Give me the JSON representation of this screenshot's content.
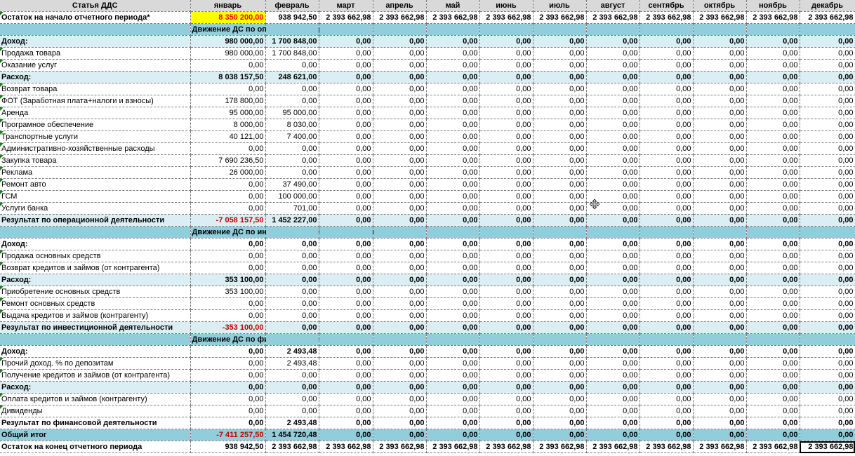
{
  "columns": [
    "Статья ДДС",
    "январь",
    "февраль",
    "март",
    "апрель",
    "май",
    "июнь",
    "июль",
    "август",
    "сентябрь",
    "октябрь",
    "ноябрь",
    "декабрь"
  ],
  "rows": [
    {
      "type": "start",
      "label": "Остаток на начало отчетного периода*",
      "values": [
        "8 350 200,00",
        "938 942,50",
        "2 393 662,98",
        "2 393 662,98",
        "2 393 662,98",
        "2 393 662,98",
        "2 393 662,98",
        "2 393 662,98",
        "2 393 662,98",
        "2 393 662,98",
        "2 393 662,98",
        "2 393 662,98"
      ]
    },
    {
      "type": "section",
      "label": "Движение ДС по операционной деятельности"
    },
    {
      "type": "total",
      "label": "Доход:",
      "values": [
        "980 000,00",
        "1 700 848,00",
        "0,00",
        "0,00",
        "0,00",
        "0,00",
        "0,00",
        "0,00",
        "0,00",
        "0,00",
        "0,00",
        "0,00"
      ]
    },
    {
      "type": "item",
      "label": "Продажа товара",
      "values": [
        "980 000,00",
        "1 700 848,00",
        "0,00",
        "0,00",
        "0,00",
        "0,00",
        "0,00",
        "0,00",
        "0,00",
        "0,00",
        "0,00",
        "0,00"
      ]
    },
    {
      "type": "item",
      "label": "Оказание услуг",
      "values": [
        "0,00",
        "0,00",
        "0,00",
        "0,00",
        "0,00",
        "0,00",
        "0,00",
        "0,00",
        "0,00",
        "0,00",
        "0,00",
        "0,00"
      ]
    },
    {
      "type": "total",
      "label": "Расход:",
      "values": [
        "8 038 157,50",
        "248 621,00",
        "0,00",
        "0,00",
        "0,00",
        "0,00",
        "0,00",
        "0,00",
        "0,00",
        "0,00",
        "0,00",
        "0,00"
      ]
    },
    {
      "type": "item",
      "label": "Возврат товара",
      "values": [
        "0,00",
        "0,00",
        "0,00",
        "0,00",
        "0,00",
        "0,00",
        "0,00",
        "0,00",
        "0,00",
        "0,00",
        "0,00",
        "0,00"
      ]
    },
    {
      "type": "item",
      "label": "ФОТ (Заработная плата+налоги и взносы)",
      "values": [
        "178 800,00",
        "0,00",
        "0,00",
        "0,00",
        "0,00",
        "0,00",
        "0,00",
        "0,00",
        "0,00",
        "0,00",
        "0,00",
        "0,00"
      ]
    },
    {
      "type": "item",
      "label": "Аренда",
      "values": [
        "95 000,00",
        "95 000,00",
        "0,00",
        "0,00",
        "0,00",
        "0,00",
        "0,00",
        "0,00",
        "0,00",
        "0,00",
        "0,00",
        "0,00"
      ]
    },
    {
      "type": "item",
      "label": "Програмное обеспечение",
      "values": [
        "8 000,00",
        "8 030,00",
        "0,00",
        "0,00",
        "0,00",
        "0,00",
        "0,00",
        "0,00",
        "0,00",
        "0,00",
        "0,00",
        "0,00"
      ]
    },
    {
      "type": "item",
      "label": "Транспортные услуги",
      "values": [
        "40 121,00",
        "7 400,00",
        "0,00",
        "0,00",
        "0,00",
        "0,00",
        "0,00",
        "0,00",
        "0,00",
        "0,00",
        "0,00",
        "0,00"
      ]
    },
    {
      "type": "item",
      "label": "Административно-хозяйственные расходы",
      "values": [
        "0,00",
        "0,00",
        "0,00",
        "0,00",
        "0,00",
        "0,00",
        "0,00",
        "0,00",
        "0,00",
        "0,00",
        "0,00",
        "0,00"
      ]
    },
    {
      "type": "item",
      "label": "Закупка товара",
      "values": [
        "7 690 236,50",
        "0,00",
        "0,00",
        "0,00",
        "0,00",
        "0,00",
        "0,00",
        "0,00",
        "0,00",
        "0,00",
        "0,00",
        "0,00"
      ]
    },
    {
      "type": "item",
      "label": "Реклама",
      "values": [
        "26 000,00",
        "0,00",
        "0,00",
        "0,00",
        "0,00",
        "0,00",
        "0,00",
        "0,00",
        "0,00",
        "0,00",
        "0,00",
        "0,00"
      ]
    },
    {
      "type": "item",
      "label": "Ремонт авто",
      "values": [
        "0,00",
        "37 490,00",
        "0,00",
        "0,00",
        "0,00",
        "0,00",
        "0,00",
        "0,00",
        "0,00",
        "0,00",
        "0,00",
        "0,00"
      ]
    },
    {
      "type": "item",
      "label": "ГСМ",
      "values": [
        "0,00",
        "100 000,00",
        "0,00",
        "0,00",
        "0,00",
        "0,00",
        "0,00",
        "0,00",
        "0,00",
        "0,00",
        "0,00",
        "0,00"
      ]
    },
    {
      "type": "item",
      "label": "Услуги банка",
      "values": [
        "0,00",
        "701,00",
        "0,00",
        "0,00",
        "0,00",
        "0,00",
        "0,00",
        "0,00",
        "0,00",
        "0,00",
        "0,00",
        "0,00"
      ]
    },
    {
      "type": "total",
      "label": "Результат по операционной деятельности",
      "neg": [
        0
      ],
      "values": [
        "-7 058 157,50",
        "1 452 227,00",
        "0,00",
        "0,00",
        "0,00",
        "0,00",
        "0,00",
        "0,00",
        "0,00",
        "0,00",
        "0,00",
        "0,00"
      ]
    },
    {
      "type": "section",
      "label": "Движение ДС по инвестиционной деятельности"
    },
    {
      "type": "subtotal",
      "label": "Доход:",
      "values": [
        "0,00",
        "0,00",
        "0,00",
        "0,00",
        "0,00",
        "0,00",
        "0,00",
        "0,00",
        "0,00",
        "0,00",
        "0,00",
        "0,00"
      ]
    },
    {
      "type": "item",
      "label": "Продажа основных средств",
      "values": [
        "0,00",
        "0,00",
        "0,00",
        "0,00",
        "0,00",
        "0,00",
        "0,00",
        "0,00",
        "0,00",
        "0,00",
        "0,00",
        "0,00"
      ]
    },
    {
      "type": "item",
      "label": "Возврат кредитов и займов (от контрагента)",
      "values": [
        "0,00",
        "0,00",
        "0,00",
        "0,00",
        "0,00",
        "0,00",
        "0,00",
        "0,00",
        "0,00",
        "0,00",
        "0,00",
        "0,00"
      ]
    },
    {
      "type": "total",
      "label": "Расход:",
      "values": [
        "353 100,00",
        "0,00",
        "0,00",
        "0,00",
        "0,00",
        "0,00",
        "0,00",
        "0,00",
        "0,00",
        "0,00",
        "0,00",
        "0,00"
      ]
    },
    {
      "type": "item",
      "label": "Приобретение основных средств",
      "values": [
        "353 100,00",
        "0,00",
        "0,00",
        "0,00",
        "0,00",
        "0,00",
        "0,00",
        "0,00",
        "0,00",
        "0,00",
        "0,00",
        "0,00"
      ]
    },
    {
      "type": "item",
      "label": "Ремонт основных средств",
      "values": [
        "0,00",
        "0,00",
        "0,00",
        "0,00",
        "0,00",
        "0,00",
        "0,00",
        "0,00",
        "0,00",
        "0,00",
        "0,00",
        "0,00"
      ]
    },
    {
      "type": "item",
      "label": "Выдача кредитов и займов (контрагенту)",
      "values": [
        "0,00",
        "0,00",
        "0,00",
        "0,00",
        "0,00",
        "0,00",
        "0,00",
        "0,00",
        "0,00",
        "0,00",
        "0,00",
        "0,00"
      ]
    },
    {
      "type": "total",
      "label": "Результат по инвестиционной деятельности",
      "neg": [
        0
      ],
      "values": [
        "-353 100,00",
        "0,00",
        "0,00",
        "0,00",
        "0,00",
        "0,00",
        "0,00",
        "0,00",
        "0,00",
        "0,00",
        "0,00",
        "0,00"
      ]
    },
    {
      "type": "section",
      "label": "Движение ДС по финансовой деятельности"
    },
    {
      "type": "subtotal",
      "label": "Доход:",
      "values": [
        "0,00",
        "2 493,48",
        "0,00",
        "0,00",
        "0,00",
        "0,00",
        "0,00",
        "0,00",
        "0,00",
        "0,00",
        "0,00",
        "0,00"
      ]
    },
    {
      "type": "item",
      "label": "Прочий доход. % по депозитам",
      "values": [
        "0,00",
        "2 493,48",
        "0,00",
        "0,00",
        "0,00",
        "0,00",
        "0,00",
        "0,00",
        "0,00",
        "0,00",
        "0,00",
        "0,00"
      ]
    },
    {
      "type": "item",
      "label": "Получение кредитов и займов (от контрагента)",
      "values": [
        "0,00",
        "0,00",
        "0,00",
        "0,00",
        "0,00",
        "0,00",
        "0,00",
        "0,00",
        "0,00",
        "0,00",
        "0,00",
        "0,00"
      ]
    },
    {
      "type": "total",
      "label": "Расход:",
      "values": [
        "0,00",
        "0,00",
        "0,00",
        "0,00",
        "0,00",
        "0,00",
        "0,00",
        "0,00",
        "0,00",
        "0,00",
        "0,00",
        "0,00"
      ]
    },
    {
      "type": "item",
      "label": "Оплата кредитов и займов (контрагенту)",
      "values": [
        "0,00",
        "0,00",
        "0,00",
        "0,00",
        "0,00",
        "0,00",
        "0,00",
        "0,00",
        "0,00",
        "0,00",
        "0,00",
        "0,00"
      ]
    },
    {
      "type": "item",
      "label": "Дивиденды",
      "values": [
        "0,00",
        "0,00",
        "0,00",
        "0,00",
        "0,00",
        "0,00",
        "0,00",
        "0,00",
        "0,00",
        "0,00",
        "0,00",
        "0,00"
      ]
    },
    {
      "type": "subtotal",
      "label": "Результат по финансовой деятельности",
      "values": [
        "0,00",
        "2 493,48",
        "0,00",
        "0,00",
        "0,00",
        "0,00",
        "0,00",
        "0,00",
        "0,00",
        "0,00",
        "0,00",
        "0,00"
      ]
    },
    {
      "type": "grand",
      "label": "Общий итог",
      "neg": [
        0
      ],
      "values": [
        "-7 411 257,50",
        "1 454 720,48",
        "0,00",
        "0,00",
        "0,00",
        "0,00",
        "0,00",
        "0,00",
        "0,00",
        "0,00",
        "0,00",
        "0,00"
      ]
    },
    {
      "type": "end",
      "label": "Остаток на конец отчетного периода",
      "values": [
        "938 942,50",
        "2 393 662,98",
        "2 393 662,98",
        "2 393 662,98",
        "2 393 662,98",
        "2 393 662,98",
        "2 393 662,98",
        "2 393 662,98",
        "2 393 662,98",
        "2 393 662,98",
        "2 393 662,98",
        "2 393 662,98"
      ]
    }
  ],
  "highlight_color": "#ffff00",
  "section_color": "#92cddc",
  "total_row_color": "#daeef3",
  "negative_color": "#c00000"
}
